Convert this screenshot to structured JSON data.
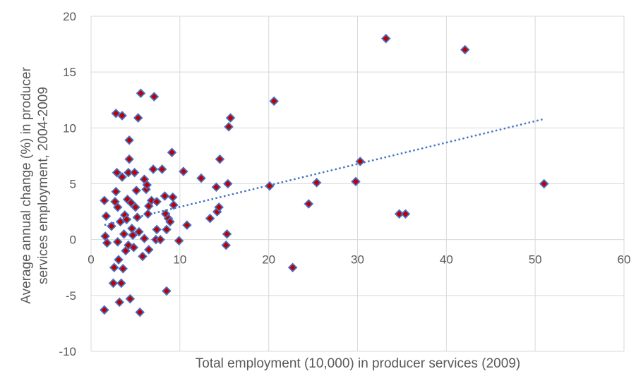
{
  "chart_data": {
    "type": "scatter",
    "title": "",
    "xlabel": "Total employment (10,000) in producer services (2009)",
    "ylabel_lines": [
      "Average annual change (%) in producer",
      "services employment, 2004-2009"
    ],
    "xlim": [
      0,
      60
    ],
    "ylim": [
      -10,
      20
    ],
    "x_ticks": [
      0,
      10,
      20,
      30,
      40,
      50,
      60
    ],
    "y_ticks": [
      -10,
      -5,
      0,
      5,
      10,
      15,
      20
    ],
    "grid": true,
    "legend": "none",
    "marker": {
      "shape": "diamond",
      "fill": "#C00000",
      "stroke": "#4472C4"
    },
    "trendline": {
      "type": "linear",
      "style": "dotted",
      "color": "#4472C4",
      "x_range": [
        1.5,
        51
      ],
      "y_at_start": 1.3,
      "y_at_end": 10.8
    },
    "points": [
      [
        1.5,
        3.5
      ],
      [
        1.6,
        0.3
      ],
      [
        1.7,
        2.1
      ],
      [
        1.8,
        -0.3
      ],
      [
        1.5,
        -6.3
      ],
      [
        2.3,
        1.2
      ],
      [
        2.5,
        -3.9
      ],
      [
        2.6,
        -2.5
      ],
      [
        2.7,
        3.4
      ],
      [
        2.8,
        4.3
      ],
      [
        2.8,
        11.3
      ],
      [
        2.9,
        6.0
      ],
      [
        3.0,
        2.9
      ],
      [
        3.0,
        -0.2
      ],
      [
        3.1,
        -1.8
      ],
      [
        3.2,
        -5.6
      ],
      [
        3.3,
        1.6
      ],
      [
        3.4,
        -3.9
      ],
      [
        3.5,
        5.6
      ],
      [
        3.5,
        11.1
      ],
      [
        3.6,
        -2.6
      ],
      [
        3.7,
        0.5
      ],
      [
        3.8,
        2.2
      ],
      [
        3.9,
        -1.0
      ],
      [
        4.0,
        1.8
      ],
      [
        4.1,
        3.6
      ],
      [
        4.2,
        6.0
      ],
      [
        4.2,
        -0.5
      ],
      [
        4.3,
        8.9
      ],
      [
        4.3,
        7.2
      ],
      [
        4.4,
        -5.3
      ],
      [
        4.5,
        3.3
      ],
      [
        4.6,
        1.0
      ],
      [
        4.7,
        0.4
      ],
      [
        4.8,
        -0.7
      ],
      [
        4.9,
        6.0
      ],
      [
        5.0,
        2.9
      ],
      [
        5.1,
        4.4
      ],
      [
        5.2,
        2.0
      ],
      [
        5.3,
        10.9
      ],
      [
        5.4,
        0.7
      ],
      [
        5.5,
        -6.5
      ],
      [
        5.6,
        13.1
      ],
      [
        5.8,
        -1.5
      ],
      [
        6.0,
        5.4
      ],
      [
        6.0,
        0.1
      ],
      [
        6.2,
        4.5
      ],
      [
        6.3,
        4.9
      ],
      [
        6.4,
        2.3
      ],
      [
        6.5,
        3.0
      ],
      [
        6.5,
        -0.9
      ],
      [
        6.8,
        3.5
      ],
      [
        7.0,
        6.3
      ],
      [
        7.1,
        12.8
      ],
      [
        7.3,
        0.0
      ],
      [
        7.4,
        3.4
      ],
      [
        7.4,
        0.9
      ],
      [
        7.8,
        0.0
      ],
      [
        8.0,
        6.3
      ],
      [
        8.3,
        3.9
      ],
      [
        8.4,
        2.3
      ],
      [
        8.5,
        0.9
      ],
      [
        8.5,
        -4.6
      ],
      [
        8.7,
        1.9
      ],
      [
        8.9,
        1.6
      ],
      [
        9.1,
        7.8
      ],
      [
        9.2,
        3.8
      ],
      [
        9.3,
        3.1
      ],
      [
        9.9,
        -0.1
      ],
      [
        10.4,
        6.1
      ],
      [
        10.8,
        1.3
      ],
      [
        12.4,
        5.5
      ],
      [
        13.4,
        1.9
      ],
      [
        14.1,
        4.7
      ],
      [
        14.2,
        2.5
      ],
      [
        14.4,
        2.9
      ],
      [
        14.5,
        7.2
      ],
      [
        15.2,
        -0.5
      ],
      [
        15.3,
        0.5
      ],
      [
        15.4,
        5.0
      ],
      [
        15.5,
        10.1
      ],
      [
        15.7,
        10.9
      ],
      [
        20.1,
        4.8
      ],
      [
        20.6,
        12.4
      ],
      [
        22.7,
        -2.5
      ],
      [
        24.5,
        3.2
      ],
      [
        25.4,
        5.1
      ],
      [
        29.8,
        5.2
      ],
      [
        30.3,
        7.0
      ],
      [
        33.2,
        18.0
      ],
      [
        34.7,
        2.3
      ],
      [
        35.4,
        2.3
      ],
      [
        42.1,
        17.0
      ],
      [
        51.0,
        5.0
      ]
    ]
  }
}
